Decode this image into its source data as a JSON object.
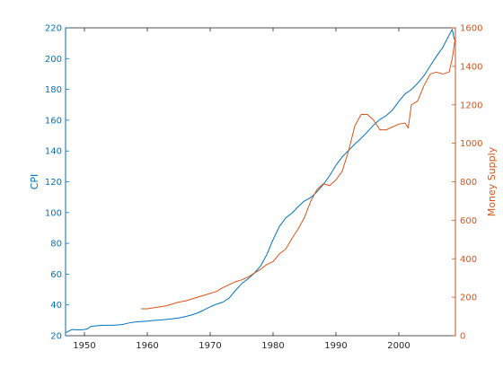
{
  "chart_data": {
    "type": "line",
    "title": "",
    "xlabel": "",
    "grid": false,
    "legend": "none",
    "x_axis": {
      "lim": [
        1947,
        2009
      ],
      "ticks": [
        1950,
        1960,
        1970,
        1980,
        1990,
        2000
      ],
      "tick_labels": [
        "1950",
        "1960",
        "1970",
        "1980",
        "1990",
        "2000"
      ]
    },
    "y_left": {
      "label": "CPI",
      "lim": [
        20,
        220
      ],
      "ticks": [
        20,
        40,
        60,
        80,
        100,
        120,
        140,
        160,
        180,
        200,
        220
      ],
      "tick_labels": [
        "20",
        "40",
        "60",
        "80",
        "100",
        "120",
        "140",
        "160",
        "180",
        "200",
        "220"
      ],
      "color": "#0072BD"
    },
    "y_right": {
      "label": "Money Supply",
      "lim": [
        0,
        1600
      ],
      "ticks": [
        0,
        200,
        400,
        600,
        800,
        1000,
        1200,
        1400,
        1600
      ],
      "tick_labels": [
        "0",
        "200",
        "400",
        "600",
        "800",
        "1000",
        "1200",
        "1400",
        "1600"
      ],
      "color": "#D95319"
    },
    "series": [
      {
        "axis": "left",
        "color": "#0072BD",
        "x": [
          1947.0,
          1948.0,
          1949.0,
          1950.0,
          1950.5,
          1951.0,
          1952.0,
          1953.0,
          1954.0,
          1955.0,
          1956.0,
          1957.0,
          1958.0,
          1959.0,
          1960.0,
          1961.0,
          1962.0,
          1963.0,
          1964.0,
          1965.0,
          1966.0,
          1967.0,
          1968.0,
          1969.0,
          1970.0,
          1971.0,
          1972.0,
          1973.0,
          1974.0,
          1975.0,
          1976.0,
          1977.0,
          1978.0,
          1979.0,
          1980.0,
          1981.0,
          1982.0,
          1983.0,
          1984.0,
          1985.0,
          1986.0,
          1987.0,
          1988.0,
          1989.0,
          1990.0,
          1991.0,
          1992.0,
          1993.0,
          1994.0,
          1995.0,
          1996.0,
          1997.0,
          1998.0,
          1999.0,
          2000.0,
          2001.0,
          2002.0,
          2003.0,
          2004.0,
          2005.0,
          2006.0,
          2007.0,
          2008.0,
          2008.5,
          2008.8,
          2009.0
        ],
        "y": [
          22.0,
          24.0,
          23.8,
          24.0,
          24.5,
          26.0,
          26.5,
          26.8,
          26.8,
          26.9,
          27.2,
          28.2,
          28.9,
          29.2,
          29.5,
          29.9,
          30.2,
          30.6,
          31.0,
          31.5,
          32.4,
          33.4,
          34.8,
          36.7,
          38.8,
          40.5,
          41.8,
          44.4,
          49.3,
          53.8,
          56.9,
          60.6,
          65.2,
          72.6,
          82.4,
          90.9,
          96.5,
          99.6,
          103.9,
          107.6,
          109.7,
          113.6,
          118.3,
          124.0,
          130.7,
          136.2,
          140.3,
          144.5,
          148.2,
          152.4,
          156.9,
          160.5,
          163.0,
          166.6,
          172.2,
          177.1,
          179.9,
          184.0,
          188.9,
          195.3,
          201.6,
          207.3,
          215.3,
          219.0,
          213.0,
          212.0
        ]
      },
      {
        "axis": "right",
        "color": "#D95319",
        "x": [
          1959.0,
          1960.0,
          1961.0,
          1962.0,
          1963.0,
          1964.0,
          1965.0,
          1966.0,
          1967.0,
          1968.0,
          1969.0,
          1970.0,
          1971.0,
          1972.0,
          1973.0,
          1974.0,
          1975.0,
          1976.0,
          1977.0,
          1978.0,
          1979.0,
          1980.0,
          1981.0,
          1982.0,
          1983.0,
          1984.0,
          1985.0,
          1986.0,
          1987.0,
          1988.0,
          1989.0,
          1990.0,
          1991.0,
          1992.0,
          1993.0,
          1994.0,
          1995.0,
          1996.0,
          1997.0,
          1998.0,
          1999.0,
          2000.0,
          2001.0,
          2001.5,
          2002.0,
          2003.0,
          2004.0,
          2005.0,
          2006.0,
          2007.0,
          2008.0,
          2008.5,
          2009.0
        ],
        "y": [
          140,
          140,
          145,
          150,
          155,
          165,
          175,
          180,
          190,
          200,
          210,
          220,
          230,
          250,
          265,
          280,
          290,
          305,
          325,
          345,
          370,
          385,
          425,
          450,
          505,
          555,
          615,
          700,
          760,
          790,
          780,
          810,
          855,
          960,
          1090,
          1150,
          1150,
          1120,
          1070,
          1070,
          1085,
          1100,
          1105,
          1080,
          1200,
          1220,
          1300,
          1360,
          1370,
          1360,
          1370,
          1440,
          1550
        ]
      }
    ]
  }
}
